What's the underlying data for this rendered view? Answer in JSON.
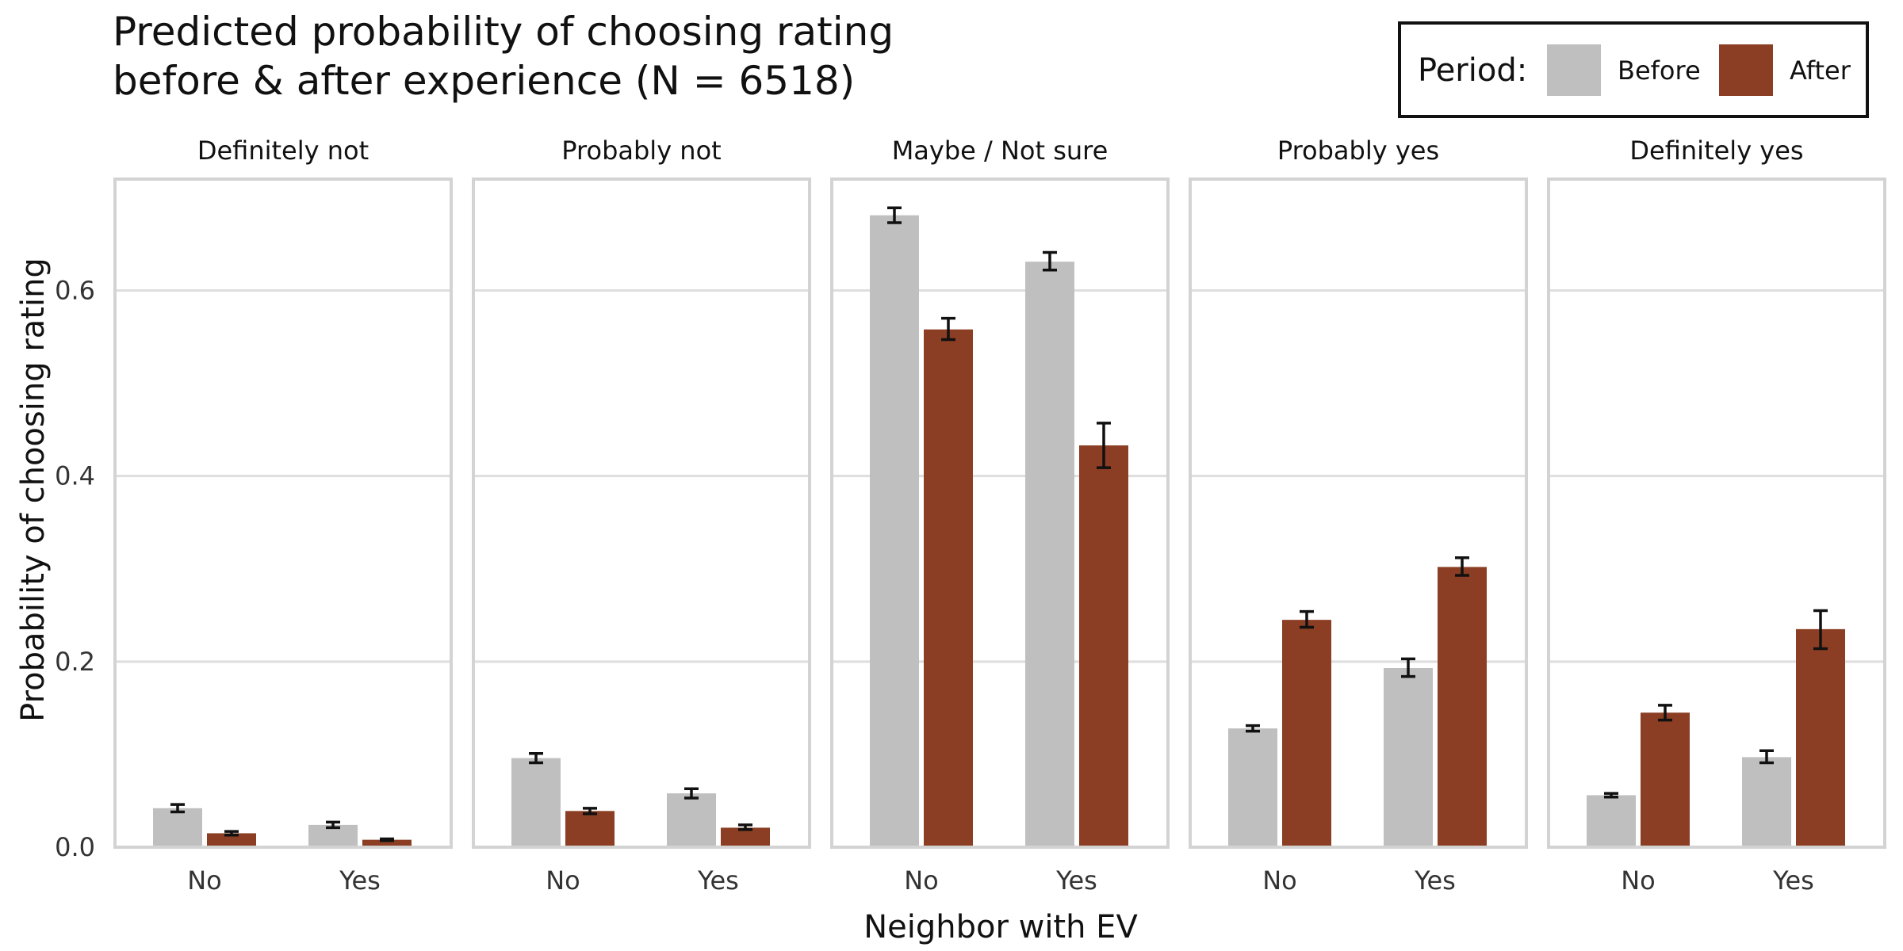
{
  "chart_data": {
    "type": "bar",
    "title": "Predicted probability of choosing rating\nbefore & after experience (N = 6518)",
    "xlabel": "Neighbor with EV",
    "ylabel": "Probability of choosing rating",
    "ylim": [
      0,
      0.72
    ],
    "yticks": [
      0.0,
      0.2,
      0.4,
      0.6
    ],
    "ytick_labels": [
      "0.0",
      "0.2",
      "0.4",
      "0.6"
    ],
    "grid": true,
    "legend": {
      "title": "Period:",
      "position": "top-right",
      "entries": [
        {
          "name": "Before",
          "color": "#bfbfbf"
        },
        {
          "name": "After",
          "color": "#8b3e23"
        }
      ]
    },
    "categories": [
      "No",
      "Yes"
    ],
    "facets": [
      {
        "label": "Definitely not",
        "series": [
          {
            "name": "Before",
            "values": [
              0.042,
              0.024
            ],
            "ci_low": [
              0.038,
              0.021
            ],
            "ci_high": [
              0.046,
              0.027
            ]
          },
          {
            "name": "After",
            "values": [
              0.015,
              0.008
            ],
            "ci_low": [
              0.013,
              0.007
            ],
            "ci_high": [
              0.017,
              0.009
            ]
          }
        ]
      },
      {
        "label": "Probably not",
        "series": [
          {
            "name": "Before",
            "values": [
              0.096,
              0.058
            ],
            "ci_low": [
              0.091,
              0.053
            ],
            "ci_high": [
              0.101,
              0.063
            ]
          },
          {
            "name": "After",
            "values": [
              0.039,
              0.021
            ],
            "ci_low": [
              0.036,
              0.019
            ],
            "ci_high": [
              0.042,
              0.024
            ]
          }
        ]
      },
      {
        "label": "Maybe / Not sure",
        "series": [
          {
            "name": "Before",
            "values": [
              0.681,
              0.631
            ],
            "ci_low": [
              0.673,
              0.622
            ],
            "ci_high": [
              0.689,
              0.641
            ]
          },
          {
            "name": "After",
            "values": [
              0.558,
              0.433
            ],
            "ci_low": [
              0.547,
              0.409
            ],
            "ci_high": [
              0.57,
              0.457
            ]
          }
        ]
      },
      {
        "label": "Probably yes",
        "series": [
          {
            "name": "Before",
            "values": [
              0.128,
              0.193
            ],
            "ci_low": [
              0.125,
              0.184
            ],
            "ci_high": [
              0.131,
              0.203
            ]
          },
          {
            "name": "After",
            "values": [
              0.245,
              0.302
            ],
            "ci_low": [
              0.237,
              0.293
            ],
            "ci_high": [
              0.254,
              0.312
            ]
          }
        ]
      },
      {
        "label": "Definitely yes",
        "series": [
          {
            "name": "Before",
            "values": [
              0.056,
              0.097
            ],
            "ci_low": [
              0.054,
              0.091
            ],
            "ci_high": [
              0.058,
              0.104
            ]
          },
          {
            "name": "After",
            "values": [
              0.145,
              0.235
            ],
            "ci_low": [
              0.137,
              0.214
            ],
            "ci_high": [
              0.153,
              0.255
            ]
          }
        ]
      }
    ]
  }
}
